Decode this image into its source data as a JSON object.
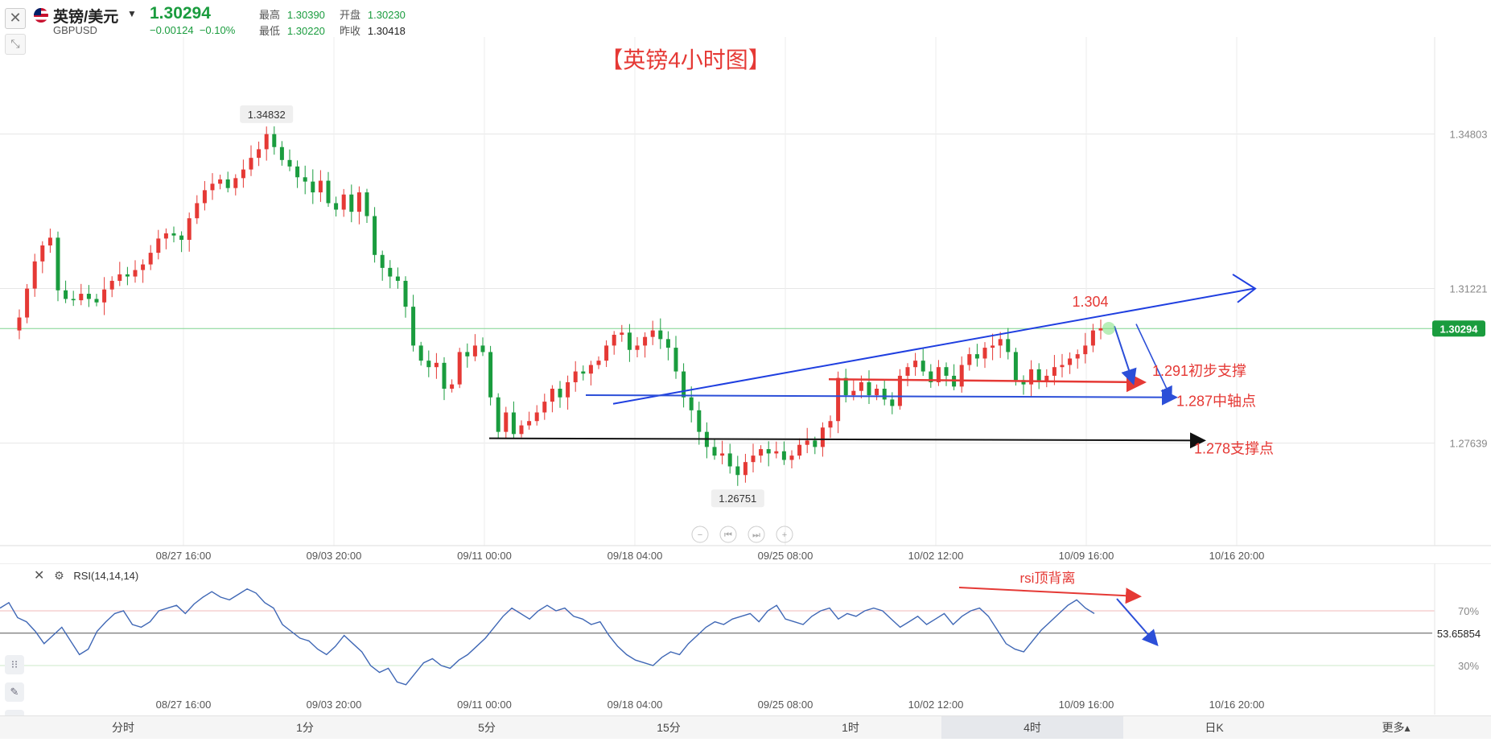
{
  "header": {
    "name": "英镑/美元",
    "code": "GBPUSD",
    "last": "1.30294",
    "change": "−0.00124",
    "change_pct": "−0.10%",
    "high_label": "最高",
    "high": "1.30390",
    "low_label": "最低",
    "low": "1.30220",
    "open_label": "开盘",
    "open": "1.30230",
    "prev_label": "昨收",
    "prev": "1.30418"
  },
  "chart_data": {
    "type": "candlestick",
    "title": "【英镑4小时图】",
    "x_ticks": [
      "08/27 16:00",
      "09/03 20:00",
      "09/11 00:00",
      "09/18 04:00",
      "09/25 08:00",
      "10/02 12:00",
      "10/09 16:00",
      "10/16 20:00"
    ],
    "y_ticks": [
      "1.34803",
      "1.31221",
      "1.27639"
    ],
    "y_range": [
      1.2545,
      1.3705
    ],
    "current_price_label": "1.30294",
    "high_marker": "1.34832",
    "low_marker": "1.26751",
    "annotations": {
      "peak": "1.304",
      "initial_support": "1.291初步支撑",
      "pivot": "1.287中轴点",
      "support": "1.278支撑点"
    },
    "series": [
      {
        "close": [
          1.3055,
          1.3122,
          1.3185,
          1.3222,
          1.324,
          1.3118,
          1.3098,
          1.3095,
          1.311,
          1.3098,
          1.309,
          1.312,
          1.314,
          1.3155,
          1.315,
          1.3165,
          1.3178,
          1.3205,
          1.3238,
          1.325,
          1.3245,
          1.3235,
          1.3285,
          1.332,
          1.335,
          1.3365,
          1.3375,
          1.3355,
          1.3378,
          1.3398,
          1.3425,
          1.3445,
          1.348,
          1.345,
          1.342,
          1.3405,
          1.338,
          1.337,
          1.3345,
          1.3372,
          1.332,
          1.3305,
          1.334,
          1.33,
          1.3345,
          1.329,
          1.32,
          1.317,
          1.315,
          1.314,
          1.308,
          1.299,
          1.2955,
          1.294,
          1.295,
          1.289,
          1.29,
          1.2975,
          1.2965,
          1.299,
          1.2975,
          1.287,
          1.279,
          1.2835,
          1.2785,
          1.2805,
          1.2815,
          1.2835,
          1.286,
          1.289,
          1.287,
          1.2905,
          1.293,
          1.2925,
          1.2945,
          1.2955,
          1.299,
          1.3015,
          1.302,
          1.298,
          1.299,
          1.301,
          1.3025,
          1.3005,
          1.2985,
          1.293,
          1.287,
          1.284,
          1.279,
          1.2755,
          1.2735,
          1.274,
          1.271,
          1.269,
          1.272,
          1.2735,
          1.275,
          1.274,
          1.2745,
          1.2725,
          1.2735,
          1.276,
          1.277,
          1.2755,
          1.28,
          1.2815,
          1.2915,
          1.2875,
          1.2885,
          1.2905,
          1.2875,
          1.289,
          1.2865,
          1.285,
          1.292,
          1.294,
          1.2955,
          1.293,
          1.2905,
          1.294,
          1.292,
          1.2895,
          1.2945,
          1.297,
          1.296,
          1.2985,
          1.299,
          1.3005,
          1.2975,
          1.291,
          1.29,
          1.2935,
          1.2905,
          1.292,
          1.294,
          1.2945,
          1.296,
          1.297,
          1.299,
          1.3025,
          1.303
        ]
      }
    ],
    "rsi": {
      "label": "RSI(14,14,14)",
      "value": "53.65854",
      "levels": [
        "70%",
        "30%"
      ],
      "annotation": "rsi顶背离",
      "x_ticks": [
        "08/27 16:00",
        "09/03 20:00",
        "09/11 00:00",
        "09/18 04:00",
        "09/25 08:00",
        "10/02 12:00",
        "10/09 16:00",
        "10/16 20:00"
      ],
      "values": [
        72,
        76,
        65,
        62,
        55,
        46,
        52,
        58,
        48,
        38,
        42,
        55,
        62,
        68,
        70,
        60,
        58,
        62,
        70,
        72,
        74,
        68,
        75,
        80,
        84,
        80,
        78,
        82,
        86,
        83,
        76,
        72,
        60,
        55,
        50,
        48,
        42,
        38,
        44,
        52,
        46,
        40,
        30,
        25,
        28,
        18,
        16,
        24,
        32,
        35,
        30,
        28,
        34,
        38,
        44,
        50,
        58,
        66,
        72,
        68,
        64,
        70,
        74,
        70,
        72,
        66,
        64,
        60,
        62,
        52,
        44,
        38,
        34,
        32,
        30,
        36,
        40,
        38,
        46,
        52,
        58,
        62,
        60,
        64,
        66,
        68,
        62,
        70,
        74,
        64,
        62,
        60,
        66,
        70,
        72,
        64,
        68,
        66,
        70,
        72,
        70,
        64,
        58,
        62,
        66,
        60,
        64,
        68,
        60,
        66,
        70,
        72,
        66,
        56,
        46,
        42,
        40,
        48,
        56,
        62,
        68,
        74,
        78,
        72,
        68
      ]
    }
  },
  "toolbar": {
    "items": [
      "分时",
      "1分",
      "5分",
      "15分",
      "1时",
      "4时",
      "日K",
      "更多▴"
    ],
    "active": "4时"
  }
}
